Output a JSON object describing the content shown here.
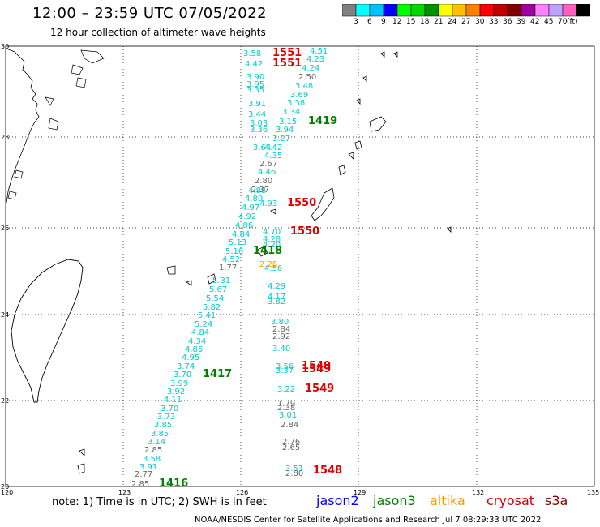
{
  "title": "12:00 – 23:59 UTC 07/05/2022",
  "subtitle": "12 hour collection of altimeter wave heights",
  "colorbar": {
    "colors": [
      "#808080",
      "#00ffff",
      "#00c0ff",
      "#0000ff",
      "#00ff00",
      "#00d800",
      "#009000",
      "#ffff00",
      "#ffc000",
      "#ff8000",
      "#ff0000",
      "#c00000",
      "#800000",
      "#a000a0",
      "#ff80ff",
      "#c0a0ff",
      "#ff60c0",
      "#000000"
    ],
    "labels": [
      "3",
      "6",
      "9",
      "12",
      "15",
      "18",
      "21",
      "24",
      "27",
      "30",
      "33",
      "36",
      "39",
      "42",
      "45",
      "70",
      "(ft)"
    ]
  },
  "axes": {
    "lat_labels": [
      "30",
      "28",
      "26",
      "24",
      "22",
      "20"
    ],
    "lon_labels": [
      "120",
      "123",
      "126",
      "129",
      "132",
      "135"
    ]
  },
  "note": "note:  1) Time is in UTC;  2) SWH is in feet",
  "legend": [
    {
      "name": "jason2",
      "color": "#0000ff"
    },
    {
      "name": "jason3",
      "color": "#008000"
    },
    {
      "name": "altika",
      "color": "#ff9900"
    },
    {
      "name": "cryosat",
      "color": "#cc0000"
    },
    {
      "name": "s3a",
      "color": "#800000"
    }
  ],
  "credit": "NOAA/NESDIS Center for Satellite Applications and Research    Jul  7 08:29:33 UTC 2022",
  "pass_times": [
    {
      "time": "1551",
      "color": "#dd0000"
    },
    {
      "time": "1551",
      "color": "#dd0000"
    },
    {
      "time": "1419",
      "color": "#008000"
    },
    {
      "time": "1550",
      "color": "#dd0000"
    },
    {
      "time": "1550",
      "color": "#dd0000"
    },
    {
      "time": "1418",
      "color": "#008000"
    },
    {
      "time": "1417",
      "color": "#008000"
    },
    {
      "time": "1549",
      "color": "#dd0000"
    },
    {
      "time": "1549",
      "color": "#dd0000"
    },
    {
      "time": "1549",
      "color": "#dd0000"
    },
    {
      "time": "1548",
      "color": "#dd0000"
    },
    {
      "time": "1416",
      "color": "#008000"
    }
  ],
  "wave_heights": {
    "cyan": [
      "3.58",
      "4.42",
      "3.90",
      "3.95",
      "3.35",
      "3.91",
      "3.44",
      "3.03",
      "3.36",
      "3.64",
      "4.42",
      "4.35",
      "3.27",
      "3.94",
      "3.15",
      "3.34",
      "3.38",
      "3.69",
      "3.48",
      "4.24",
      "4.23",
      "4.51",
      "4.80",
      "4.97",
      "4.92",
      "4.86",
      "4.84",
      "5.13",
      "5.16",
      "4.52",
      "4.70",
      "4.28",
      "4.20",
      "4.29",
      "4.17",
      "3.82",
      "5.31",
      "5.67",
      "5.54",
      "5.82",
      "5.41",
      "5.24",
      "4.84",
      "4.34",
      "4.85",
      "4.95",
      "3.74",
      "3.70",
      "3.99",
      "3.92",
      "4.11",
      "3.70",
      "3.73",
      "3.85",
      "3.85",
      "3.14",
      "3.58",
      "3.91",
      "3.80",
      "3.40",
      "3.56",
      "3.37",
      "3.22",
      "3.01",
      "3.51",
      "4.93",
      "4.46",
      "4.56",
      "4.88"
    ],
    "gray": [
      "2.50",
      "2.67",
      "2.80",
      "2.37",
      "1.77",
      "2.84",
      "2.92",
      "1.79",
      "2.38",
      "2.84",
      "2.76",
      "2.65",
      "2.80",
      "2.85",
      "2.77",
      "2.85"
    ],
    "orange": [
      "2.28"
    ]
  }
}
